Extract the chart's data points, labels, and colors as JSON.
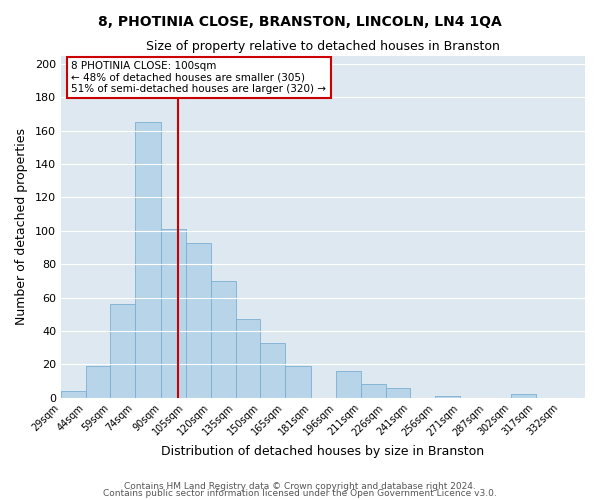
{
  "title": "8, PHOTINIA CLOSE, BRANSTON, LINCOLN, LN4 1QA",
  "subtitle": "Size of property relative to detached houses in Branston",
  "xlabel": "Distribution of detached houses by size in Branston",
  "ylabel": "Number of detached properties",
  "bin_labels": [
    "29sqm",
    "44sqm",
    "59sqm",
    "74sqm",
    "90sqm",
    "105sqm",
    "120sqm",
    "135sqm",
    "150sqm",
    "165sqm",
    "181sqm",
    "196sqm",
    "211sqm",
    "226sqm",
    "241sqm",
    "256sqm",
    "271sqm",
    "287sqm",
    "302sqm",
    "317sqm",
    "332sqm"
  ],
  "bin_edges": [
    29,
    44,
    59,
    74,
    90,
    105,
    120,
    135,
    150,
    165,
    181,
    196,
    211,
    226,
    241,
    256,
    271,
    287,
    302,
    317,
    332,
    347
  ],
  "bar_heights": [
    4,
    19,
    56,
    165,
    101,
    93,
    70,
    47,
    33,
    19,
    0,
    16,
    8,
    6,
    0,
    1,
    0,
    0,
    2,
    0,
    0
  ],
  "bar_color": "#b8d4e8",
  "bar_edgecolor": "#7aafd4",
  "vline_x": 100,
  "vline_color": "#cc0000",
  "ylim": [
    0,
    205
  ],
  "yticks": [
    0,
    20,
    40,
    60,
    80,
    100,
    120,
    140,
    160,
    180,
    200
  ],
  "background_color": "#ffffff",
  "plot_bg_color": "#dde8f0",
  "grid_color": "#ffffff",
  "marker_label": "8 PHOTINIA CLOSE: 100sqm",
  "annotation_smaller": "← 48% of detached houses are smaller (305)",
  "annotation_larger": "51% of semi-detached houses are larger (320) →",
  "footer1": "Contains HM Land Registry data © Crown copyright and database right 2024.",
  "footer2": "Contains public sector information licensed under the Open Government Licence v3.0."
}
